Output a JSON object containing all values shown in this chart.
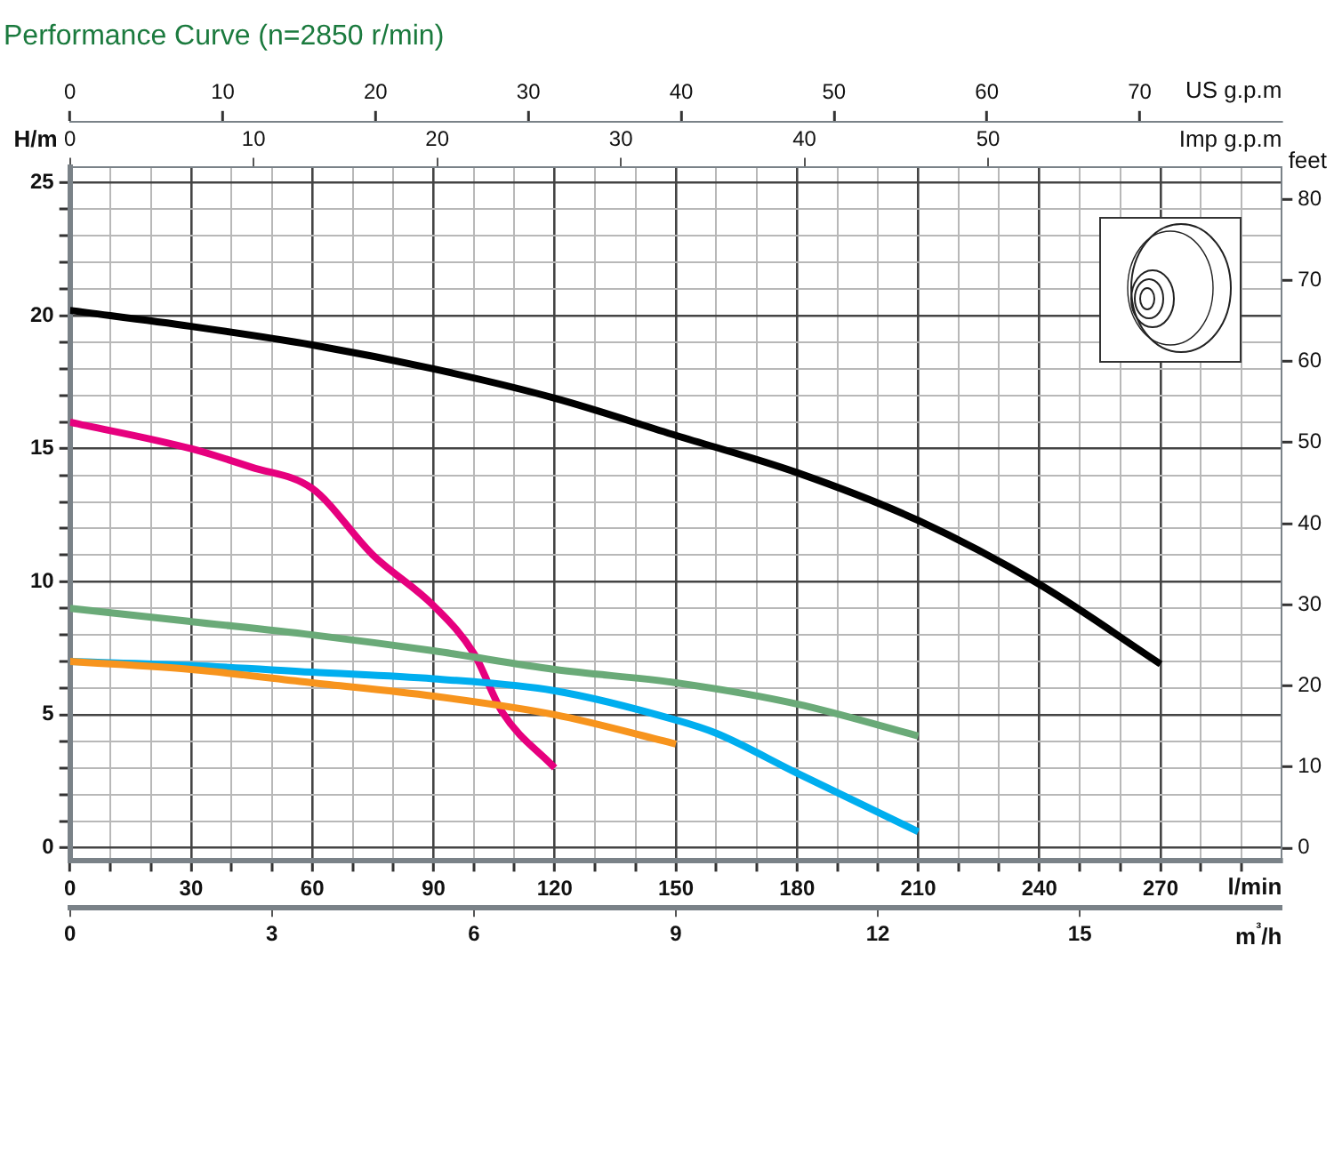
{
  "chart_data": {
    "type": "line",
    "title": "Performance Curve (n=2850 r/min)",
    "xlabel": "l/min",
    "ylabel": "H/m",
    "y2label": "feet",
    "x2label": "US g.p.m",
    "grid": true,
    "marker": "none",
    "line_style": "solid",
    "series": [
      {
        "color": "#f7941d",
        "x": [
          0,
          30,
          60,
          90,
          120,
          150
        ],
        "values": [
          7.0,
          6.7,
          6.2,
          5.7,
          5.0,
          3.9
        ]
      },
      {
        "color": "#00aeef",
        "x": [
          0,
          30,
          60,
          90,
          120,
          150,
          160,
          180,
          210
        ],
        "values": [
          7.0,
          6.85,
          6.6,
          6.35,
          5.9,
          4.8,
          4.3,
          2.8,
          0.6
        ]
      },
      {
        "color": "#6aaa78",
        "x": [
          0,
          30,
          60,
          90,
          120,
          150,
          180,
          210
        ],
        "values": [
          9.0,
          8.5,
          8.0,
          7.4,
          6.7,
          6.2,
          5.4,
          4.2
        ]
      },
      {
        "color": "#e6007e",
        "x": [
          0,
          30,
          45,
          60,
          75,
          90,
          100,
          107,
          120
        ],
        "values": [
          16.0,
          15.0,
          14.3,
          13.5,
          11.0,
          9.1,
          7.3,
          5.1,
          3.0
        ]
      },
      {
        "color": "#000000",
        "x": [
          0,
          30,
          60,
          90,
          120,
          150,
          180,
          210,
          240,
          270
        ],
        "values": [
          20.2,
          19.6,
          18.9,
          18.0,
          16.9,
          15.5,
          14.1,
          12.3,
          9.9,
          6.9
        ]
      }
    ],
    "xlim": [
      0,
      300
    ],
    "xticks": [
      0,
      {
        "value": 10,
        "label": null
      },
      {
        "value": 20,
        "label": null
      },
      30,
      {
        "value": 40,
        "label": null
      },
      {
        "value": 50,
        "label": null
      },
      60,
      {
        "value": 70,
        "label": null
      },
      {
        "value": 80,
        "label": null
      },
      90,
      {
        "value": 100,
        "label": null
      },
      {
        "value": 110,
        "label": null
      },
      120,
      {
        "value": 130,
        "label": null
      },
      {
        "value": 140,
        "label": null
      },
      150,
      {
        "value": 160,
        "label": null
      },
      {
        "value": 170,
        "label": null
      },
      180,
      {
        "value": 190,
        "label": null
      },
      {
        "value": 200,
        "label": null
      },
      210,
      {
        "value": 220,
        "label": null
      },
      {
        "value": 230,
        "label": null
      },
      240,
      {
        "value": 250,
        "label": null
      },
      {
        "value": 260,
        "label": null
      },
      270,
      {
        "value": 280,
        "label": null
      },
      {
        "value": 290,
        "label": null
      }
    ],
    "ylim": [
      -0.5,
      25.6
    ],
    "yticks": [
      0,
      {
        "value": 1,
        "label": null
      },
      {
        "value": 2,
        "label": null
      },
      {
        "value": 3,
        "label": null
      },
      {
        "value": 4,
        "label": null
      },
      5,
      {
        "value": 6,
        "label": null
      },
      {
        "value": 7,
        "label": null
      },
      {
        "value": 8,
        "label": null
      },
      {
        "value": 9,
        "label": null
      },
      10,
      {
        "value": 11,
        "label": null
      },
      {
        "value": 12,
        "label": null
      },
      {
        "value": 13,
        "label": null
      },
      {
        "value": 14,
        "label": null
      },
      15,
      {
        "value": 16,
        "label": null
      },
      {
        "value": 17,
        "label": null
      },
      {
        "value": 18,
        "label": null
      },
      {
        "value": 19,
        "label": null
      },
      20,
      {
        "value": 21,
        "label": null
      },
      {
        "value": 22,
        "label": null
      },
      {
        "value": 23,
        "label": null
      },
      {
        "value": 24,
        "label": null
      },
      25
    ],
    "y2lim": [
      -1.6,
      84
    ],
    "y2ticks": [
      0,
      10,
      20,
      30,
      40,
      50,
      60,
      70,
      80
    ],
    "x2lim": [
      0,
      79.3
    ],
    "x2ticks": [
      0,
      10,
      20,
      30,
      40,
      50,
      60,
      70
    ],
    "annotations": [
      "0",
      "10",
      "20",
      "30",
      "40",
      "50",
      "Imp g.p.m",
      "0",
      "3",
      "6",
      "9",
      "12",
      "15",
      "m³/h"
    ]
  }
}
